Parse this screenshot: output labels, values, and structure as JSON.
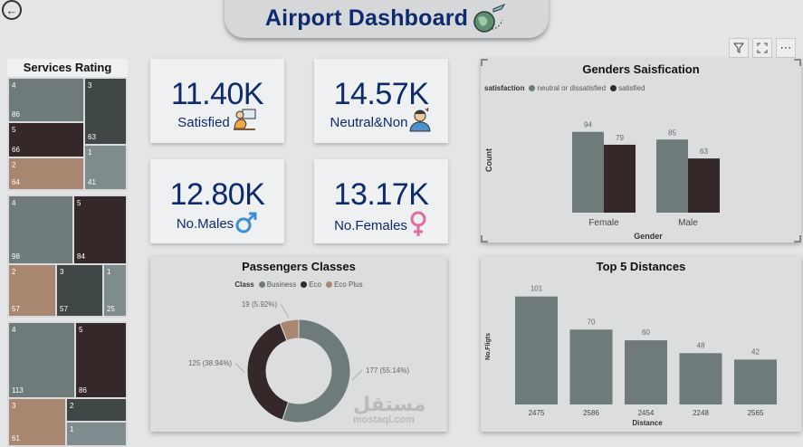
{
  "header": {
    "title": "Airport Dashboard",
    "back_icon": "back-arrow-icon"
  },
  "toolbar": {
    "icons": [
      "filter-icon",
      "expand-icon",
      "more-icon"
    ],
    "more_label": "⋯"
  },
  "services_rating": {
    "title": "Services Rating",
    "treemaps": [
      {
        "tiles": [
          {
            "key": "4",
            "value": "86",
            "color": "#6f7b7b"
          },
          {
            "key": "3",
            "value": "63",
            "color": "#3f4646"
          },
          {
            "key": "5",
            "value": "66",
            "color": "#342828"
          },
          {
            "key": "2",
            "value": "64",
            "color": "#a98670"
          },
          {
            "key": "1",
            "value": "41",
            "color": "#7f8c8d"
          }
        ]
      },
      {
        "tiles": [
          {
            "key": "4",
            "value": "98",
            "color": "#6f7b7b"
          },
          {
            "key": "5",
            "value": "84",
            "color": "#342828"
          },
          {
            "key": "2",
            "value": "57",
            "color": "#a98670"
          },
          {
            "key": "3",
            "value": "57",
            "color": "#3f4646"
          },
          {
            "key": "1",
            "value": "25",
            "color": "#7f8c8d"
          }
        ]
      },
      {
        "tiles": [
          {
            "key": "4",
            "value": "113",
            "color": "#6f7b7b"
          },
          {
            "key": "5",
            "value": "86",
            "color": "#342828"
          },
          {
            "key": "3",
            "value": "61",
            "color": "#a98670"
          },
          {
            "key": "2",
            "value": "",
            "color": "#3f4646"
          },
          {
            "key": "1",
            "value": "",
            "color": "#7f8c8d"
          }
        ]
      }
    ]
  },
  "kpis": [
    {
      "value": "11.40K",
      "label": "Satisfied",
      "icon": "satisfied-person-icon"
    },
    {
      "value": "14.57K",
      "label": "Neutral&Non",
      "icon": "stressed-person-icon"
    },
    {
      "value": "12.80K",
      "label": "No.Males",
      "icon": "male-symbol-icon"
    },
    {
      "value": "13.17K",
      "label": "No.Females",
      "icon": "female-symbol-icon"
    }
  ],
  "colors": {
    "slate": "#6f7b7b",
    "dark": "#342828",
    "tan": "#a98670",
    "navy": "#0e2a6e",
    "male": "#3a8fd6",
    "female": "#e36aa0"
  },
  "chart_data": [
    {
      "type": "bar",
      "title": "Genders Saisfication",
      "legend_title": "satisfaction",
      "categories": [
        "Female",
        "Male"
      ],
      "series": [
        {
          "name": "neutral or dissatisfied",
          "values": [
            94,
            85
          ],
          "color": "#6f7b7b"
        },
        {
          "name": "satisfied",
          "values": [
            79,
            63
          ],
          "color": "#342828"
        }
      ],
      "xlabel": "Gender",
      "ylabel": "Count",
      "ylim": [
        0,
        100
      ],
      "legend_position": "top-left"
    },
    {
      "type": "pie",
      "title": "Passengers Classes",
      "legend_title": "Class",
      "slices": [
        {
          "name": "Business",
          "value": 177,
          "label": "177 (55.14%)",
          "color": "#6f7b7b"
        },
        {
          "name": "Eco",
          "value": 125,
          "label": "125 (38.94%)",
          "color": "#342828"
        },
        {
          "name": "Eco Plus",
          "value": 19,
          "label": "19 (5.92%)",
          "color": "#a98670"
        }
      ],
      "donut": true,
      "legend_position": "top-center"
    },
    {
      "type": "bar",
      "title": "Top 5 Distances",
      "categories": [
        "2475",
        "2586",
        "2454",
        "2248",
        "2565"
      ],
      "values": [
        101,
        70,
        60,
        48,
        42
      ],
      "xlabel": "Distance",
      "ylabel": "No.Fligts",
      "ylim": [
        0,
        110
      ],
      "color": "#6f7b7b"
    }
  ],
  "watermark": {
    "arabic": "مستقل",
    "latin": "mostaql.com"
  }
}
